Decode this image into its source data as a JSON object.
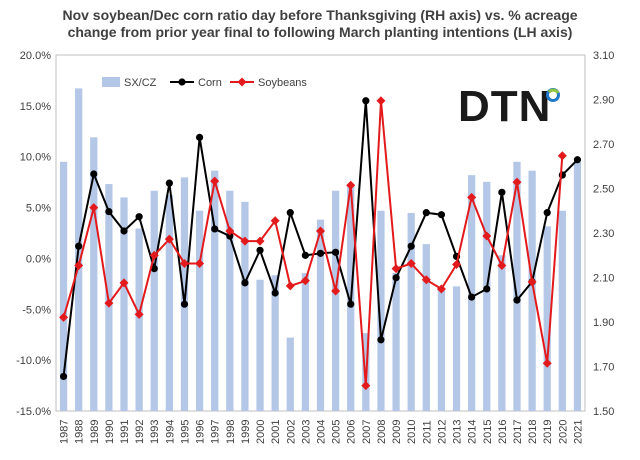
{
  "chart_data": {
    "type": "bar-line-combo",
    "title_line_1": "Nov soybean/Dec corn ratio day before Thanksgiving (RH axis)  vs. % acreage",
    "title_line_2": "change from prior year final to following March planting intentions (LH axis)",
    "categories": [
      "1987",
      "1988",
      "1989",
      "1990",
      "1991",
      "1992",
      "1993",
      "1994",
      "1995",
      "1996",
      "1997",
      "1998",
      "1999",
      "2000",
      "2001",
      "2002",
      "2003",
      "2004",
      "2005",
      "2006",
      "2007",
      "2008",
      "2009",
      "2010",
      "2011",
      "2012",
      "2013",
      "2014",
      "2015",
      "2016",
      "2017",
      "2018",
      "2019",
      "2020",
      "2021"
    ],
    "left_axis": {
      "min": -0.15,
      "max": 0.2,
      "step": 0.05,
      "tick_labels": [
        "-15.0%",
        "-10.0%",
        "-5.0%",
        "0.0%",
        "5.0%",
        "10.0%",
        "15.0%",
        "20.0%"
      ]
    },
    "right_axis": {
      "min": 1.5,
      "max": 3.1,
      "step": 0.2,
      "tick_labels": [
        "1.50",
        "1.70",
        "1.90",
        "2.10",
        "2.30",
        "2.50",
        "2.70",
        "2.90",
        "3.10"
      ]
    },
    "series": [
      {
        "name": "SX/CZ",
        "kind": "bar",
        "axis": "right",
        "color": "#b4c7e7",
        "values": [
          2.62,
          2.95,
          2.73,
          2.52,
          2.46,
          2.32,
          2.49,
          2.47,
          2.55,
          2.4,
          2.58,
          2.49,
          2.44,
          2.09,
          2.11,
          1.83,
          2.12,
          2.36,
          2.49,
          2.52,
          1.85,
          2.4,
          2.12,
          2.39,
          2.25,
          2.05,
          2.06,
          2.56,
          2.53,
          2.2,
          2.62,
          2.58,
          2.33,
          2.4,
          2.62
        ]
      },
      {
        "name": "Corn",
        "kind": "line",
        "axis": "left",
        "color": "#000000",
        "values": [
          -0.116,
          0.012,
          0.083,
          0.046,
          0.027,
          0.041,
          -0.01,
          0.074,
          -0.045,
          0.119,
          0.029,
          0.022,
          -0.024,
          0.008,
          -0.034,
          0.045,
          0.003,
          0.005,
          0.006,
          -0.045,
          0.155,
          -0.08,
          -0.019,
          0.012,
          0.045,
          0.043,
          0.002,
          -0.038,
          -0.03,
          0.065,
          -0.041,
          -0.023,
          0.045,
          0.082,
          0.097
        ]
      },
      {
        "name": "Soybeans",
        "kind": "line",
        "axis": "left",
        "color": "#e31a1c",
        "values": [
          -0.058,
          -0.007,
          0.05,
          -0.044,
          -0.024,
          -0.055,
          0.003,
          0.019,
          -0.005,
          -0.005,
          0.076,
          0.027,
          0.017,
          0.017,
          0.037,
          -0.027,
          -0.022,
          0.027,
          -0.032,
          0.072,
          -0.125,
          0.155,
          -0.01,
          -0.005,
          -0.021,
          -0.03,
          -0.006,
          0.06,
          0.022,
          -0.007,
          0.075,
          -0.023,
          -0.103,
          0.101,
          null
        ]
      }
    ],
    "legend": [
      "SX/CZ",
      "Corn",
      "Soybeans"
    ],
    "legend_position": "top-left",
    "gridlines": false
  },
  "logo": {
    "text": "DTN",
    "color_dark": "#1a1a1a",
    "color_blue": "#1f78c8",
    "color_green": "#8cc63f"
  }
}
